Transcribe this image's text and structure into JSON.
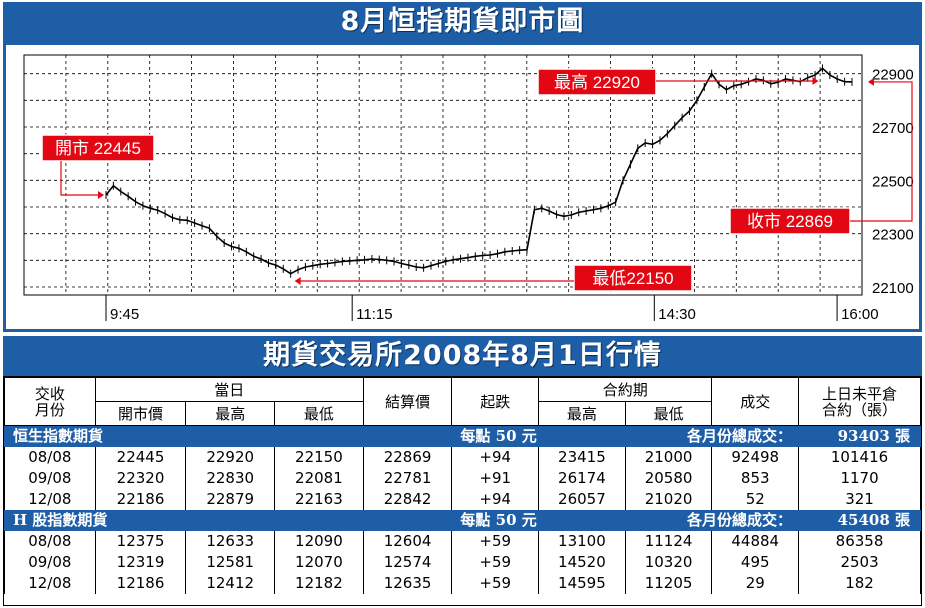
{
  "chart_banner_title": "8月恒指期貨即市圖",
  "table_banner_title": "期貨交易所2008年8月1日行情",
  "chart_data": {
    "type": "line",
    "title": "8月恒指期貨即市圖",
    "x_ticks": [
      "9:45",
      "11:15",
      "14:30",
      "16:00"
    ],
    "y_ticks": [
      22100,
      22300,
      22500,
      22700,
      22900
    ],
    "ylim": [
      22070,
      22970
    ],
    "series": [
      {
        "name": "",
        "points": [
          [
            0,
            22445
          ],
          [
            1,
            22480
          ],
          [
            2,
            22458
          ],
          [
            3,
            22440
          ],
          [
            4,
            22420
          ],
          [
            5,
            22405
          ],
          [
            6,
            22395
          ],
          [
            7,
            22388
          ],
          [
            8,
            22375
          ],
          [
            9,
            22360
          ],
          [
            10,
            22352
          ],
          [
            11,
            22350
          ],
          [
            12,
            22340
          ],
          [
            13,
            22330
          ],
          [
            14,
            22320
          ],
          [
            15,
            22290
          ],
          [
            16,
            22265
          ],
          [
            17,
            22252
          ],
          [
            18,
            22245
          ],
          [
            19,
            22232
          ],
          [
            20,
            22215
          ],
          [
            21,
            22205
          ],
          [
            22,
            22190
          ],
          [
            23,
            22182
          ],
          [
            24,
            22168
          ],
          [
            25,
            22150
          ],
          [
            26,
            22165
          ],
          [
            27,
            22175
          ],
          [
            28,
            22180
          ],
          [
            29,
            22185
          ],
          [
            30,
            22188
          ],
          [
            31,
            22192
          ],
          [
            32,
            22196
          ],
          [
            33,
            22198
          ],
          [
            34,
            22200
          ],
          [
            35,
            22202
          ],
          [
            36,
            22205
          ],
          [
            37,
            22203
          ],
          [
            38,
            22200
          ],
          [
            39,
            22196
          ],
          [
            40,
            22188
          ],
          [
            41,
            22182
          ],
          [
            42,
            22175
          ],
          [
            43,
            22172
          ],
          [
            44,
            22180
          ],
          [
            45,
            22188
          ],
          [
            46,
            22196
          ],
          [
            47,
            22202
          ],
          [
            48,
            22206
          ],
          [
            49,
            22210
          ],
          [
            50,
            22215
          ],
          [
            51,
            22218
          ],
          [
            52,
            22220
          ],
          [
            53,
            22225
          ],
          [
            54,
            22232
          ],
          [
            55,
            22235
          ],
          [
            56,
            22238
          ],
          [
            57,
            22240
          ],
          [
            58,
            22390
          ],
          [
            59,
            22395
          ],
          [
            60,
            22385
          ],
          [
            61,
            22372
          ],
          [
            62,
            22365
          ],
          [
            63,
            22370
          ],
          [
            64,
            22380
          ],
          [
            65,
            22385
          ],
          [
            66,
            22390
          ],
          [
            67,
            22395
          ],
          [
            68,
            22405
          ],
          [
            69,
            22418
          ],
          [
            70,
            22500
          ],
          [
            71,
            22560
          ],
          [
            72,
            22620
          ],
          [
            73,
            22640
          ],
          [
            74,
            22635
          ],
          [
            75,
            22650
          ],
          [
            76,
            22675
          ],
          [
            77,
            22705
          ],
          [
            78,
            22735
          ],
          [
            79,
            22760
          ],
          [
            80,
            22800
          ],
          [
            81,
            22850
          ],
          [
            82,
            22900
          ],
          [
            83,
            22860
          ],
          [
            84,
            22840
          ],
          [
            85,
            22855
          ],
          [
            86,
            22860
          ],
          [
            87,
            22870
          ],
          [
            88,
            22880
          ],
          [
            89,
            22875
          ],
          [
            90,
            22862
          ],
          [
            91,
            22868
          ],
          [
            92,
            22880
          ],
          [
            93,
            22875
          ],
          [
            94,
            22870
          ],
          [
            95,
            22885
          ],
          [
            96,
            22895
          ],
          [
            97,
            22920
          ],
          [
            98,
            22895
          ],
          [
            99,
            22880
          ],
          [
            100,
            22870
          ],
          [
            101,
            22869
          ]
        ]
      }
    ],
    "annotations": {
      "open": {
        "label": "開市 22445",
        "value": 22445
      },
      "high": {
        "label": "最高 22920",
        "value": 22920
      },
      "low": {
        "label": "最低22150",
        "value": 22150
      },
      "close": {
        "label": "收市 22869",
        "value": 22869
      }
    },
    "grid": true,
    "colors": {
      "line": "#000000",
      "annotation": "#e30613",
      "grid": "#000000",
      "frame": "#1e5ea6"
    }
  },
  "table": {
    "head_row1": {
      "month": "交收\n月份",
      "today": "當日",
      "settle": "結算價",
      "change": "起跌",
      "contract": "合約期",
      "volume": "成交",
      "oi": "上日未平倉\n合約（張）"
    },
    "head_row2": [
      "開市價",
      "最高",
      "最低",
      "最高",
      "最低"
    ],
    "sections": [
      {
        "name": "恒生指數期貨",
        "per_point": "每點 50 元",
        "total_label": "各月份總成交：",
        "total_value": "93403 張",
        "rows": [
          [
            "08/08",
            "22445",
            "22920",
            "22150",
            "22869",
            "+94",
            "23415",
            "21000",
            "92498",
            "101416"
          ],
          [
            "09/08",
            "22320",
            "22830",
            "22081",
            "22781",
            "+91",
            "26174",
            "20580",
            "853",
            "1170"
          ],
          [
            "12/08",
            "22186",
            "22879",
            "22163",
            "22842",
            "+94",
            "26057",
            "21020",
            "52",
            "321"
          ]
        ]
      },
      {
        "name": "H 股指數期貨",
        "per_point": "每點 50 元",
        "total_label": "各月份總成交：",
        "total_value": "45408 張",
        "rows": [
          [
            "08/08",
            "12375",
            "12633",
            "12090",
            "12604",
            "+59",
            "13100",
            "11124",
            "44884",
            "86358"
          ],
          [
            "09/08",
            "12319",
            "12581",
            "12070",
            "12574",
            "+59",
            "14520",
            "10320",
            "495",
            "2503"
          ],
          [
            "12/08",
            "12186",
            "12412",
            "12182",
            "12635",
            "+59",
            "14595",
            "11205",
            "29",
            "182"
          ]
        ]
      }
    ]
  }
}
